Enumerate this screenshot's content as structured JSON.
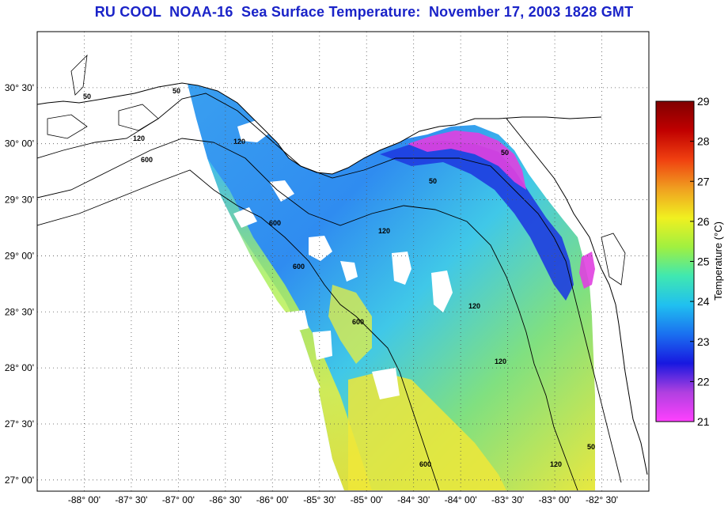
{
  "title": "RU COOL  NOAA-16  Sea Surface Temperature:  November 17, 2003 1828 GMT",
  "map": {
    "lon_range": [
      -88.5,
      -82.0
    ],
    "lat_range": [
      26.9,
      31.0
    ],
    "lon_ticks": [
      {
        "value": -88.0,
        "label": "-88° 00'"
      },
      {
        "value": -87.5,
        "label": "-87° 30'"
      },
      {
        "value": -87.0,
        "label": "-87° 00'"
      },
      {
        "value": -86.5,
        "label": "-86° 30'"
      },
      {
        "value": -86.0,
        "label": "-86° 00'"
      },
      {
        "value": -85.5,
        "label": "-85° 30'"
      },
      {
        "value": -85.0,
        "label": "-85° 00'"
      },
      {
        "value": -84.5,
        "label": "-84° 30'"
      },
      {
        "value": -84.0,
        "label": "-84° 00'"
      },
      {
        "value": -83.5,
        "label": "-83° 30'"
      },
      {
        "value": -83.0,
        "label": "-83° 00'"
      },
      {
        "value": -82.5,
        "label": "-82° 30'"
      }
    ],
    "lat_ticks": [
      {
        "value": 30.5,
        "label": "30° 30'"
      },
      {
        "value": 30.0,
        "label": "30° 00'"
      },
      {
        "value": 29.5,
        "label": "29° 30'"
      },
      {
        "value": 29.0,
        "label": "29° 00'"
      },
      {
        "value": 28.5,
        "label": "28° 30'"
      },
      {
        "value": 28.0,
        "label": "28° 00'"
      },
      {
        "value": 27.5,
        "label": "27° 30'"
      },
      {
        "value": 27.0,
        "label": "27° 00'"
      }
    ],
    "grid": "dotted",
    "contour_labels": [
      "50",
      "50",
      "120",
      "600",
      "120",
      "600",
      "600",
      "120",
      "120",
      "600",
      "120",
      "50",
      "50",
      "120",
      "50",
      "600"
    ]
  },
  "colorbar": {
    "title": "Temperature (°C)",
    "min": 21,
    "max": 29,
    "ticks": [
      "29",
      "28",
      "27",
      "26",
      "25",
      "24",
      "23",
      "22",
      "21"
    ],
    "colors": [
      "#ff40ff",
      "#b040e0",
      "#1818e0",
      "#1a70f0",
      "#20c0f0",
      "#40e8b0",
      "#a0f040",
      "#f0f020",
      "#f0a020",
      "#f04010",
      "#c00000",
      "#800000"
    ]
  }
}
